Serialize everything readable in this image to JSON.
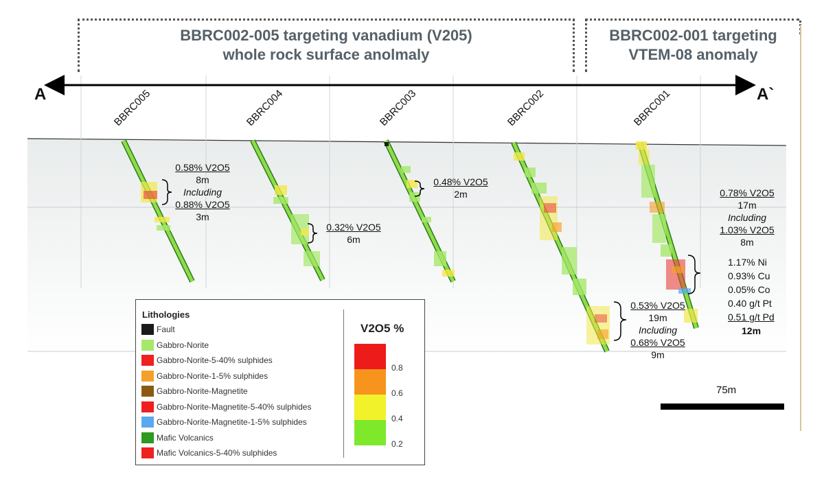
{
  "header_left": {
    "line1": "BBRC002-005 targeting vanadium (V205)",
    "line2": "whole rock surface anolmaly"
  },
  "header_right": {
    "line1": "BBRC002-001 targeting",
    "line2": "VTEM-08 anomaly"
  },
  "section": {
    "start": "A",
    "end": "A`"
  },
  "holes": [
    "BBRC005",
    "BBRC004",
    "BBRC003",
    "BBRC002",
    "BBRC001"
  ],
  "annotations": {
    "bbrc005": {
      "grade": "0.58% V2O5",
      "len": "8m",
      "incl": "Including",
      "grade2": "0.88% V2O5",
      "len2": "3m"
    },
    "bbrc004": {
      "grade": "0.32% V2O5",
      "len": "6m"
    },
    "bbrc003": {
      "grade": "0.48% V2O5",
      "len": "2m"
    },
    "bbrc002": {
      "grade": "0.53% V2O5",
      "len": "19m",
      "incl": "Including",
      "grade2": "0.68% V2O5",
      "len2": "9m"
    },
    "bbrc001_v": {
      "grade": "0.78% V2O5",
      "len": "17m",
      "incl": "Including",
      "grade2": "1.03% V2O5",
      "len2": "8m"
    },
    "bbrc001_base": {
      "ni": "1.17% Ni",
      "cu": "0.93% Cu",
      "co": "0.05% Co",
      "pt": "0.40 g/t Pt",
      "pd": "0.51 g/t Pd",
      "len": "12m"
    }
  },
  "legend": {
    "title": "Lithologies",
    "items": [
      {
        "label": "Fault",
        "color": "#1a1a1a"
      },
      {
        "label": "Gabbro-Norite",
        "color": "#a6e86a"
      },
      {
        "label": "Gabbro-Norite-5-40% sulphides",
        "color": "#ee2020"
      },
      {
        "label": "Gabbro-Norite-1-5% sulphides",
        "color": "#f5a02a"
      },
      {
        "label": "Gabbro-Norite-Magnetite",
        "color": "#8b5a12"
      },
      {
        "label": "Gabbro-Norite-Magnetite-5-40% sulphides",
        "color": "#ee2020"
      },
      {
        "label": "Gabbro-Norite-Magnetite-1-5% sulphides",
        "color": "#5aa8ee"
      },
      {
        "label": "Mafic Volcanics",
        "color": "#2e9a1e"
      },
      {
        "label": "Mafic Volcanics-5-40% sulphides",
        "color": "#ee2020"
      }
    ],
    "scale_title": "V2O5 %",
    "scale": [
      {
        "value": "0.8",
        "color": "#ee1b1b"
      },
      {
        "value": "0.6",
        "color": "#f7941d"
      },
      {
        "value": "0.4",
        "color": "#f2f22a"
      },
      {
        "value": "0.2",
        "color": "#7ee82a"
      }
    ]
  },
  "scalebar": {
    "label": "75m"
  }
}
